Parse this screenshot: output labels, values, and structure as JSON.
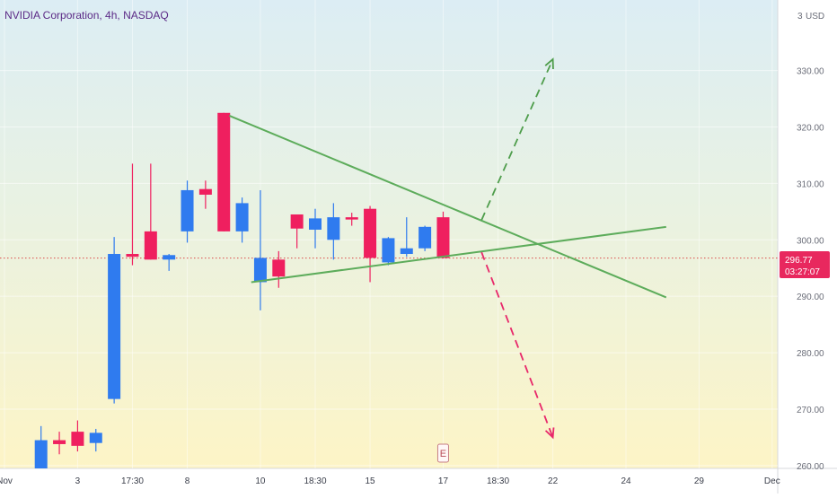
{
  "chart_data": {
    "type": "candlestick",
    "title": "NVIDIA Corporation, 4h, NASDAQ",
    "currency_label": "USD",
    "currency_prefix_partial": "3",
    "y_ticks": [
      260,
      270,
      280,
      290,
      300,
      310,
      320,
      330
    ],
    "y_tick_labels": [
      "260.00",
      "270.00",
      "280.00",
      "290.00",
      "300.00",
      "310.00",
      "320.00",
      "330.00"
    ],
    "ylim": [
      259.5,
      342.5
    ],
    "x_tick_labels": [
      "Nov",
      "3",
      "17:30",
      "8",
      "10",
      "18:30",
      "15",
      "17",
      "18:30",
      "22",
      "24",
      "29",
      "Dec"
    ],
    "x_tick_slots": [
      0,
      4,
      7,
      10,
      14,
      17,
      20,
      24,
      27,
      30,
      34,
      38,
      42
    ],
    "xlim_slots": [
      0,
      42.5
    ],
    "current_price": "296.77",
    "countdown": "03:27:07",
    "current_price_value": 296.77,
    "earnings_marker": "E",
    "earnings_marker_slot": 24,
    "colors": {
      "up": "#2f7bef",
      "down": "#ef1f5f",
      "trendline": "#5dac5b",
      "projection_up": "#4e9d4b",
      "projection_down": "#e8286a",
      "price_line": "#d94a4a",
      "price_label_bg": "#e8285e"
    },
    "candles": [
      {
        "slot": 2,
        "open": 259.5,
        "high": 267.0,
        "low": 259.5,
        "close": 264.5,
        "dir": "up"
      },
      {
        "slot": 3,
        "open": 264.5,
        "high": 266.0,
        "low": 262.0,
        "close": 263.8,
        "dir": "down"
      },
      {
        "slot": 4,
        "open": 266.0,
        "high": 268.0,
        "low": 262.5,
        "close": 263.5,
        "dir": "down"
      },
      {
        "slot": 5,
        "open": 264.0,
        "high": 266.5,
        "low": 262.5,
        "close": 265.8,
        "dir": "up"
      },
      {
        "slot": 6,
        "open": 271.8,
        "high": 300.5,
        "low": 271.0,
        "close": 297.5,
        "dir": "up"
      },
      {
        "slot": 7,
        "open": 297.5,
        "high": 313.5,
        "low": 295.5,
        "close": 297.0,
        "dir": "down"
      },
      {
        "slot": 8,
        "open": 301.5,
        "high": 313.5,
        "low": 296.5,
        "close": 296.5,
        "dir": "down"
      },
      {
        "slot": 9,
        "open": 296.5,
        "high": 297.5,
        "low": 294.5,
        "close": 297.3,
        "dir": "up"
      },
      {
        "slot": 10,
        "open": 301.5,
        "high": 310.5,
        "low": 299.5,
        "close": 308.8,
        "dir": "up"
      },
      {
        "slot": 11,
        "open": 309.0,
        "high": 310.5,
        "low": 305.5,
        "close": 308.0,
        "dir": "down"
      },
      {
        "slot": 12,
        "open": 322.5,
        "high": 322.5,
        "low": 301.5,
        "close": 301.5,
        "dir": "down"
      },
      {
        "slot": 13,
        "open": 301.5,
        "high": 307.5,
        "low": 299.5,
        "close": 306.5,
        "dir": "up"
      },
      {
        "slot": 14,
        "open": 292.5,
        "high": 308.8,
        "low": 287.5,
        "close": 296.8,
        "dir": "up"
      },
      {
        "slot": 15,
        "open": 296.5,
        "high": 298.0,
        "low": 291.5,
        "close": 293.5,
        "dir": "down"
      },
      {
        "slot": 16,
        "open": 304.5,
        "high": 304.5,
        "low": 298.5,
        "close": 302.0,
        "dir": "down"
      },
      {
        "slot": 17,
        "open": 301.8,
        "high": 305.5,
        "low": 298.5,
        "close": 303.8,
        "dir": "up"
      },
      {
        "slot": 18,
        "open": 300.0,
        "high": 306.5,
        "low": 296.5,
        "close": 304.0,
        "dir": "up"
      },
      {
        "slot": 19,
        "open": 304.0,
        "high": 304.8,
        "low": 302.5,
        "close": 303.6,
        "dir": "down"
      },
      {
        "slot": 20,
        "open": 305.5,
        "high": 306.0,
        "low": 292.5,
        "close": 296.8,
        "dir": "down"
      },
      {
        "slot": 21,
        "open": 296.0,
        "high": 300.5,
        "low": 295.5,
        "close": 300.3,
        "dir": "up"
      },
      {
        "slot": 22,
        "open": 297.5,
        "high": 304.0,
        "low": 297.0,
        "close": 298.5,
        "dir": "up"
      },
      {
        "slot": 23,
        "open": 298.5,
        "high": 302.5,
        "low": 298.0,
        "close": 302.3,
        "dir": "up"
      },
      {
        "slot": 24,
        "open": 304.0,
        "high": 305.0,
        "low": 296.7,
        "close": 296.77,
        "dir": "down"
      }
    ],
    "trendlines": [
      {
        "x1": 12.3,
        "y1": 322.0,
        "x2": 36.2,
        "y2": 289.8
      },
      {
        "x1": 13.5,
        "y1": 292.5,
        "x2": 36.2,
        "y2": 302.3
      }
    ],
    "projections": [
      {
        "direction": "up",
        "x1": 26.1,
        "y1": 303.5,
        "x2": 30.0,
        "y2": 332.0
      },
      {
        "direction": "down",
        "x1": 26.1,
        "y1": 297.8,
        "x2": 30.0,
        "y2": 265.0
      }
    ]
  }
}
